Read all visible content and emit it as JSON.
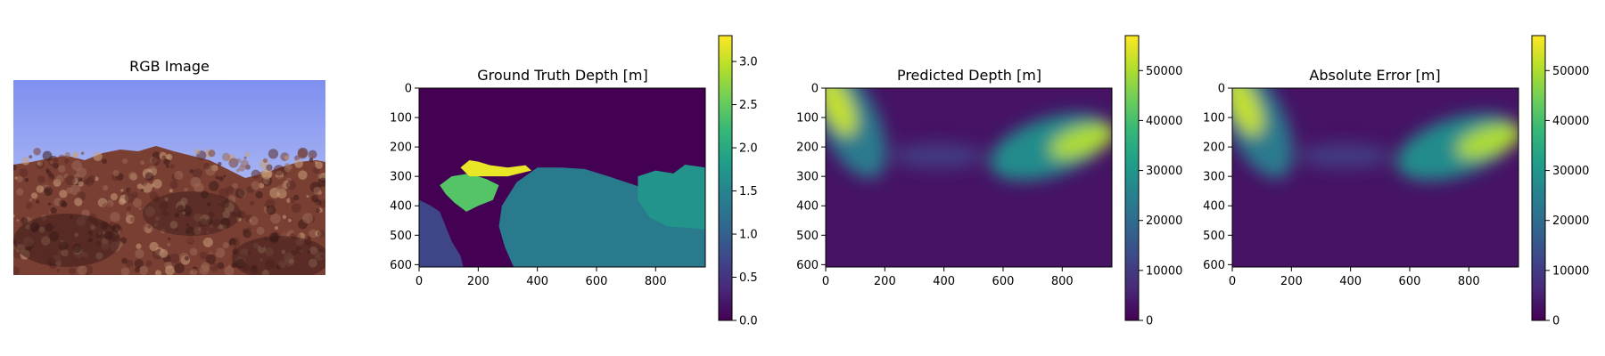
{
  "figure": {
    "panels": [
      {
        "id": "rgb",
        "title": "RGB Image"
      },
      {
        "id": "gt",
        "title": "Ground Truth Depth [m]"
      },
      {
        "id": "pred",
        "title": "Predicted Depth [m]"
      },
      {
        "id": "err",
        "title": "Absolute Error [m]"
      }
    ]
  },
  "colors": {
    "viridis_stops": [
      "#440154",
      "#482878",
      "#3e4989",
      "#31688e",
      "#26828e",
      "#1f9e89",
      "#35b779",
      "#6ece58",
      "#b5de2b",
      "#fde725"
    ],
    "water_top": "#7f8ff0",
    "water_mid": "#a9b6f2",
    "reef_dark": "#3a1a18",
    "reef_mid": "#7a3f33",
    "reef_light": "#c8a07a"
  },
  "chart_data": [
    {
      "type": "image",
      "title": "RGB Image"
    },
    {
      "type": "heatmap",
      "title": "Ground Truth Depth [m]",
      "x_ticks": [
        0,
        200,
        400,
        600,
        800
      ],
      "y_ticks": [
        0,
        100,
        200,
        300,
        400,
        500,
        600
      ],
      "xlim": [
        0,
        968
      ],
      "ylim": [
        608,
        0
      ],
      "colorbar_ticks": [
        0.0,
        0.5,
        1.0,
        1.5,
        2.0,
        2.5,
        3.0
      ],
      "colorbar_tick_labels": [
        "0.0",
        "0.5",
        "1.0",
        "1.5",
        "2.0",
        "2.5",
        "3.0"
      ],
      "colorbar_range": [
        0,
        3.3
      ],
      "regions": [
        {
          "label": "background (no depth)",
          "value": 0.0
        },
        {
          "label": "left rock",
          "value": 0.7
        },
        {
          "label": "central rock mass",
          "value": 1.35
        },
        {
          "label": "right rock",
          "value": 1.7
        },
        {
          "label": "left-center ridge",
          "value": 2.4
        },
        {
          "label": "top ridge",
          "value": 3.2
        }
      ]
    },
    {
      "type": "heatmap",
      "title": "Predicted Depth [m]",
      "x_ticks": [
        0,
        200,
        400,
        600,
        800
      ],
      "y_ticks": [
        0,
        100,
        200,
        300,
        400,
        500,
        600
      ],
      "xlim": [
        0,
        968
      ],
      "ylim": [
        608,
        0
      ],
      "colorbar_ticks": [
        0,
        10000,
        20000,
        30000,
        40000,
        50000
      ],
      "colorbar_tick_labels": [
        "0",
        "10000",
        "20000",
        "30000",
        "40000",
        "50000"
      ],
      "colorbar_range": [
        0,
        57000
      ],
      "blobs": [
        {
          "label": "upper-left streak",
          "x": 50,
          "y": 60,
          "value": 52000
        },
        {
          "label": "left-center haze",
          "x": 380,
          "y": 230,
          "value": 10000
        },
        {
          "label": "right band",
          "x": 830,
          "y": 190,
          "value": 50000
        },
        {
          "label": "background",
          "value": 3000
        }
      ]
    },
    {
      "type": "heatmap",
      "title": "Absolute Error [m]",
      "x_ticks": [
        0,
        200,
        400,
        600,
        800
      ],
      "y_ticks": [
        0,
        100,
        200,
        300,
        400,
        500,
        600
      ],
      "xlim": [
        0,
        968
      ],
      "ylim": [
        608,
        0
      ],
      "colorbar_ticks": [
        0,
        10000,
        20000,
        30000,
        40000,
        50000
      ],
      "colorbar_tick_labels": [
        "0",
        "10000",
        "20000",
        "30000",
        "40000",
        "50000"
      ],
      "colorbar_range": [
        0,
        57000
      ],
      "blobs": [
        {
          "label": "upper-left streak",
          "x": 50,
          "y": 60,
          "value": 52000
        },
        {
          "label": "left-center haze",
          "x": 380,
          "y": 230,
          "value": 10000
        },
        {
          "label": "right band",
          "x": 830,
          "y": 190,
          "value": 50000
        },
        {
          "label": "background",
          "value": 3000
        }
      ]
    }
  ]
}
